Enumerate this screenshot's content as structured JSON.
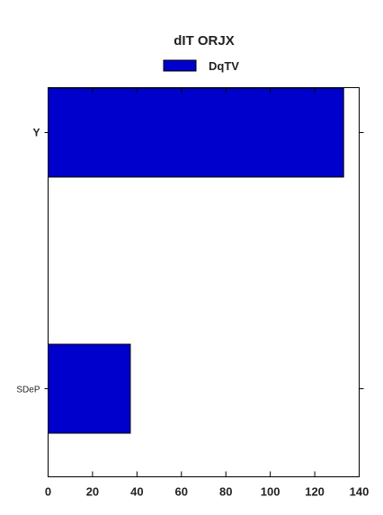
{
  "chart_data": {
    "type": "bar",
    "orientation": "horizontal",
    "title": "dIT  ORJX",
    "categories": [
      "Y",
      "SDeP"
    ],
    "series": [
      {
        "name": "DqTV",
        "values": [
          133,
          37
        ],
        "color": "#0000cc"
      }
    ],
    "xlim": [
      0,
      140
    ],
    "x_ticks": [
      0,
      20,
      40,
      60,
      80,
      100,
      120,
      140
    ],
    "xlabel": "",
    "ylabel": "",
    "grid": false,
    "legend": "top-center"
  }
}
